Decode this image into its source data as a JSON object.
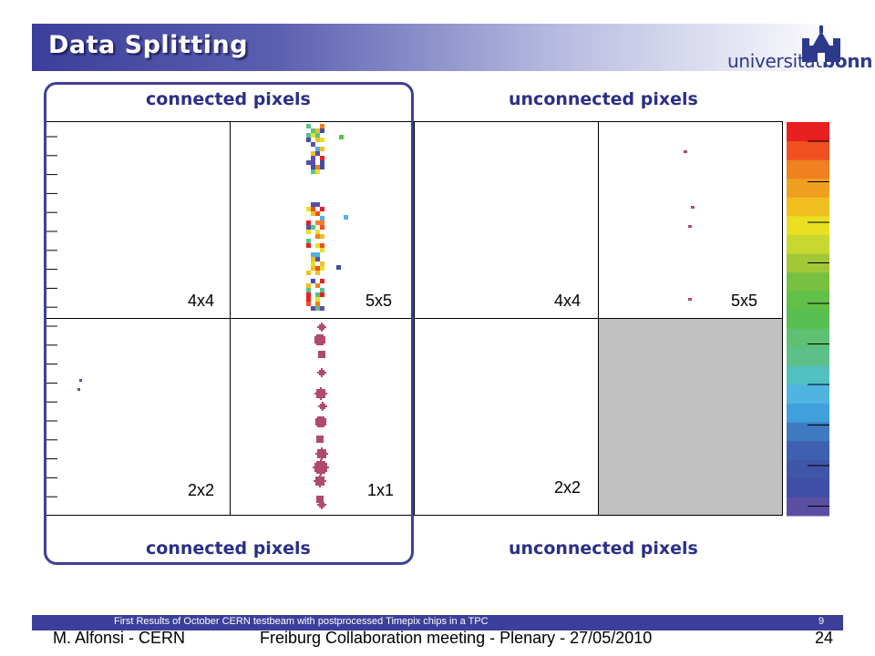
{
  "slide": {
    "title": "Data Splitting",
    "logo": {
      "prefix": "universität",
      "suffix": "bonn"
    }
  },
  "headers": {
    "top_left": "connected pixels",
    "top_right": "unconnected pixels",
    "bottom_left": "connected pixels",
    "bottom_right": "unconnected pixels"
  },
  "cells": [
    {
      "label": "4x4"
    },
    {
      "label": "5x5"
    },
    {
      "label": "4x4"
    },
    {
      "label": "5x5"
    },
    {
      "label": "2x2"
    },
    {
      "label": "1x1"
    },
    {
      "label": "2x2"
    }
  ],
  "palette": [
    "#5b4fa3",
    "#3f4fa8",
    "#3f55a8",
    "#3f60b0",
    "#3f7ac0",
    "#3fa0dc",
    "#4fb4e0",
    "#50c0c0",
    "#5cc088",
    "#5ec070",
    "#58c050",
    "#60c048",
    "#78c040",
    "#a0c838",
    "#c8d830",
    "#e8e020",
    "#f0c020",
    "#f0a020",
    "#f08020",
    "#f05020",
    "#e82020"
  ],
  "footer": {
    "text": "First Results of October CERN testbeam with postprocessed Timepix chips in a TPC",
    "page": "9"
  },
  "under_footer": {
    "author": "M. Alfonsi - CERN",
    "meeting": "Freiburg Collaboration meeting - Plenary - 27/05/2010",
    "page": "24"
  }
}
